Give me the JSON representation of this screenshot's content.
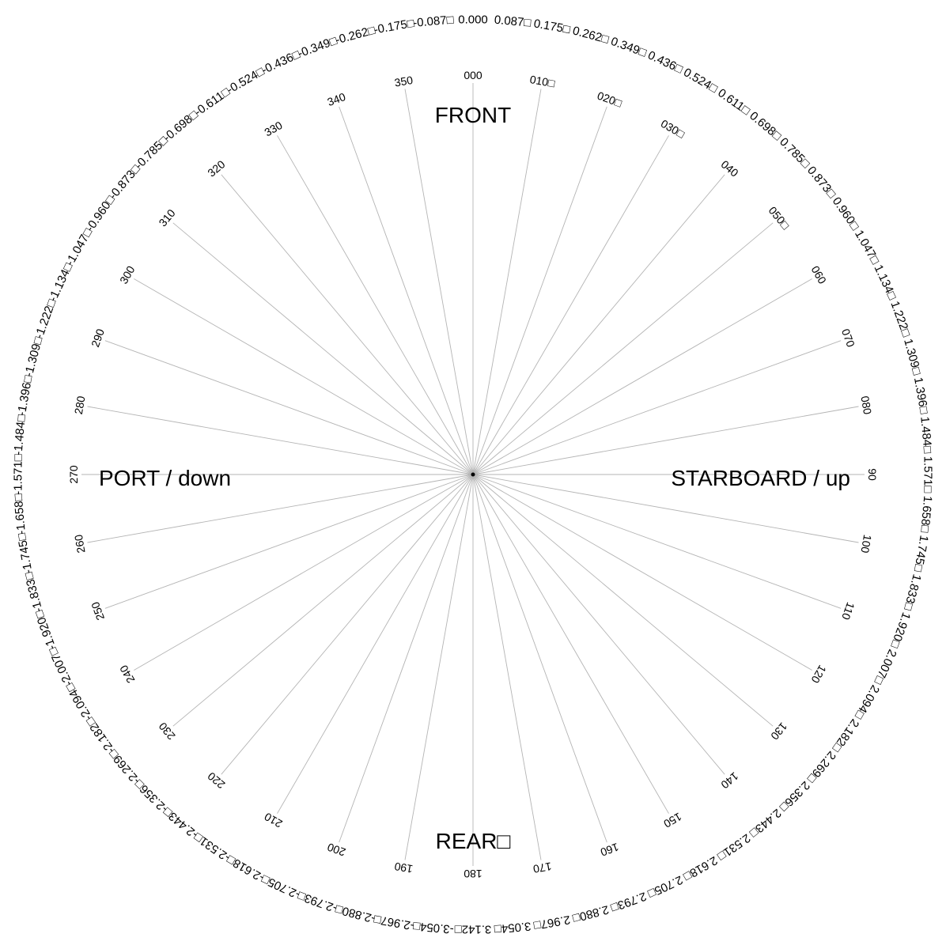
{
  "directions": {
    "front": "FRONT",
    "rear": "REAR□",
    "starboard": "STARBOARD / up",
    "port": "PORT / down"
  },
  "colors": {
    "ray": "#b4b4b4",
    "text": "#000000",
    "background": "#ffffff"
  },
  "rays": [
    {
      "bearing": 0,
      "deg_label": "000",
      "rad_labels": [
        "0.000"
      ]
    },
    {
      "bearing": 10,
      "deg_label": "010□",
      "rad_labels": [
        "-0.087□",
        "0.087□"
      ]
    },
    {
      "bearing": 20,
      "deg_label": "020□",
      "rad_labels": [
        "-0.175□",
        "0.175□"
      ]
    },
    {
      "bearing": 30,
      "deg_label": "030□",
      "rad_labels": [
        "-0.262□",
        "0.262□"
      ]
    },
    {
      "bearing": 40,
      "deg_label": "040",
      "rad_labels": [
        "-0.349□",
        "0.349□"
      ]
    },
    {
      "bearing": 50,
      "deg_label": "050□",
      "rad_labels": [
        "-0.436□",
        "0.436□"
      ]
    },
    {
      "bearing": 60,
      "deg_label": "060",
      "rad_labels": [
        "-0.524□",
        "0.524□"
      ]
    },
    {
      "bearing": 70,
      "deg_label": "070",
      "rad_labels": [
        "-0.611□",
        "0.611□"
      ]
    },
    {
      "bearing": 80,
      "deg_label": "080",
      "rad_labels": [
        "-0.698□",
        "0.698□"
      ]
    },
    {
      "bearing": 90,
      "deg_label": "90",
      "rad_labels": [
        "-0.785□",
        "0.785□"
      ]
    },
    {
      "bearing": 100,
      "deg_label": "100",
      "rad_labels": [
        "-0.873□",
        "0.873□"
      ]
    },
    {
      "bearing": 110,
      "deg_label": "110",
      "rad_labels": [
        "-0.960□",
        "0.960□"
      ]
    },
    {
      "bearing": 120,
      "deg_label": "120",
      "rad_labels": [
        "-1.047□",
        "1.047□"
      ]
    },
    {
      "bearing": 130,
      "deg_label": "130",
      "rad_labels": [
        "-1.134□",
        "1.134□"
      ]
    },
    {
      "bearing": 140,
      "deg_label": "140",
      "rad_labels": [
        "-1.222□",
        "1.222□"
      ]
    },
    {
      "bearing": 150,
      "deg_label": "150",
      "rad_labels": [
        "-1.309□",
        "1.309□"
      ]
    },
    {
      "bearing": 160,
      "deg_label": "160",
      "rad_labels": [
        "-1.396□",
        "1.396□"
      ]
    },
    {
      "bearing": 170,
      "deg_label": "170",
      "rad_labels": [
        "-1.484□",
        "1.484□"
      ]
    },
    {
      "bearing": 180,
      "deg_label": "180",
      "rad_labels": [
        "-1.571□",
        "1.571□"
      ]
    },
    {
      "bearing": 190,
      "deg_label": "190",
      "rad_labels": [
        "-1.658□",
        "1.658□"
      ]
    },
    {
      "bearing": 200,
      "deg_label": "200",
      "rad_labels": [
        "-1.745□",
        "1.745□"
      ]
    },
    {
      "bearing": 210,
      "deg_label": "210",
      "rad_labels": [
        "-1.833□",
        "1.833□"
      ]
    },
    {
      "bearing": 220,
      "deg_label": "220",
      "rad_labels": [
        "-1.920□",
        "1.920□"
      ]
    },
    {
      "bearing": 230,
      "deg_label": "230",
      "rad_labels": [
        "-2.007□",
        "2.007□"
      ]
    },
    {
      "bearing": 240,
      "deg_label": "240",
      "rad_labels": [
        "-2.094□",
        "2.094□"
      ]
    },
    {
      "bearing": 250,
      "deg_label": "250",
      "rad_labels": [
        "-2.182□",
        "2.182□"
      ]
    },
    {
      "bearing": 260,
      "deg_label": "260",
      "rad_labels": [
        "-2.269□",
        "2.269□"
      ]
    },
    {
      "bearing": 270,
      "deg_label": "270",
      "rad_labels": [
        "-2.356□",
        "2.356□"
      ]
    },
    {
      "bearing": 280,
      "deg_label": "280",
      "rad_labels": [
        "-2.443□",
        "2.443□"
      ]
    },
    {
      "bearing": 290,
      "deg_label": "290",
      "rad_labels": [
        "-2.531□",
        "2.531□"
      ]
    },
    {
      "bearing": 300,
      "deg_label": "300",
      "rad_labels": [
        "-2.618□",
        "2.618□"
      ]
    },
    {
      "bearing": 310,
      "deg_label": "310",
      "rad_labels": [
        "-2.705□",
        "2.705□"
      ]
    },
    {
      "bearing": 320,
      "deg_label": "320",
      "rad_labels": [
        "-2.793□",
        "2.793□"
      ]
    },
    {
      "bearing": 330,
      "deg_label": "330",
      "rad_labels": [
        "-2.880□",
        "2.880□"
      ]
    },
    {
      "bearing": 340,
      "deg_label": "340",
      "rad_labels": [
        "-2.967□",
        "2.967□"
      ]
    },
    {
      "bearing": 350,
      "deg_label": "350",
      "rad_labels": [
        "-3.054□",
        "3.054□"
      ]
    },
    {
      "bearing": 360,
      "deg_label": "",
      "rad_labels": [
        "3.142□"
      ]
    }
  ]
}
